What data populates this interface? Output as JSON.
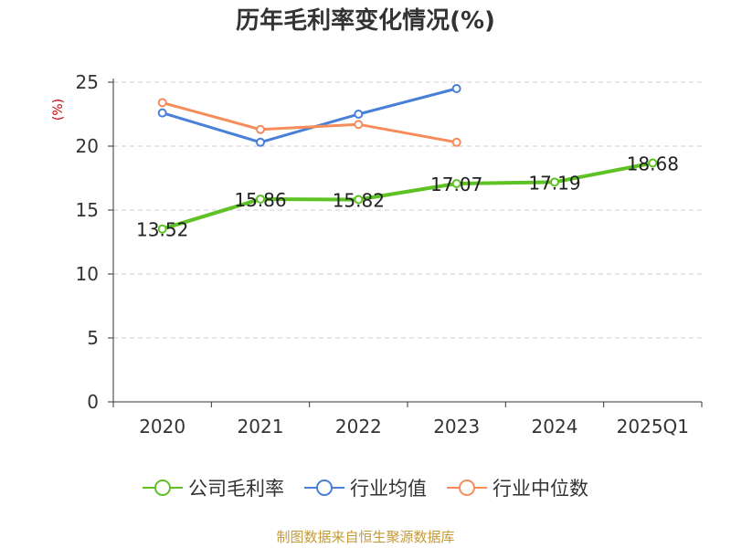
{
  "chart_data": {
    "type": "line",
    "title": "历年毛利率变化情况(%)",
    "unit_label": "(%)",
    "categories": [
      "2020",
      "2021",
      "2022",
      "2023",
      "2024",
      "2025Q1"
    ],
    "ylim": [
      0,
      25
    ],
    "yticks": [
      0,
      5,
      10,
      15,
      20,
      25
    ],
    "grid": true,
    "legend_position": "bottom",
    "series": [
      {
        "name": "公司毛利率",
        "color": "#5ec224",
        "values": [
          13.52,
          15.86,
          15.82,
          17.07,
          17.19,
          18.68
        ],
        "show_labels": true
      },
      {
        "name": "行业均值",
        "color": "#4a7fd8",
        "values": [
          22.6,
          20.3,
          22.5,
          24.5,
          null,
          null
        ],
        "show_labels": false
      },
      {
        "name": "行业中位数",
        "color": "#f58c5a",
        "values": [
          23.4,
          21.3,
          21.7,
          20.3,
          null,
          null
        ],
        "show_labels": false
      }
    ]
  },
  "source_text": "制图数据来自恒生聚源数据库"
}
